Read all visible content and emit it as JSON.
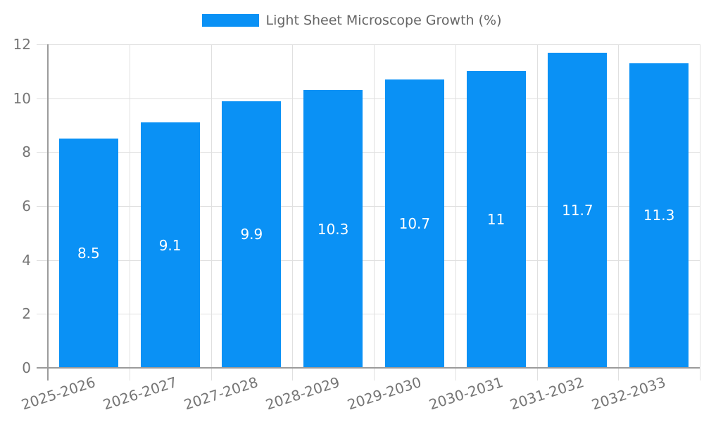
{
  "legend": {
    "label": "Light Sheet Microscope Growth (%)",
    "position": "top"
  },
  "chart_data": {
    "type": "bar",
    "title": "Light Sheet Microscope Growth (%)",
    "categories": [
      "2025-2026",
      "2026-2027",
      "2027-2028",
      "2028-2029",
      "2029-2030",
      "2030-2031",
      "2031-2032",
      "2032-2033"
    ],
    "values": [
      8.5,
      9.1,
      9.9,
      10.3,
      10.7,
      11,
      11.7,
      11.3
    ],
    "xlabel": "",
    "ylabel": "",
    "ylim": [
      0,
      12
    ],
    "yticks": [
      0,
      2,
      4,
      6,
      8,
      10,
      12
    ],
    "grid": true,
    "legend_position": "top",
    "bar_label_position": "center"
  },
  "colors": {
    "bar": "#0a91f5",
    "bar_label": "#ffffff",
    "grid": "#e0e0e0",
    "axis": "#9b9b9b",
    "tick_text": "#757575",
    "legend_text": "#666666",
    "background": "#ffffff"
  }
}
